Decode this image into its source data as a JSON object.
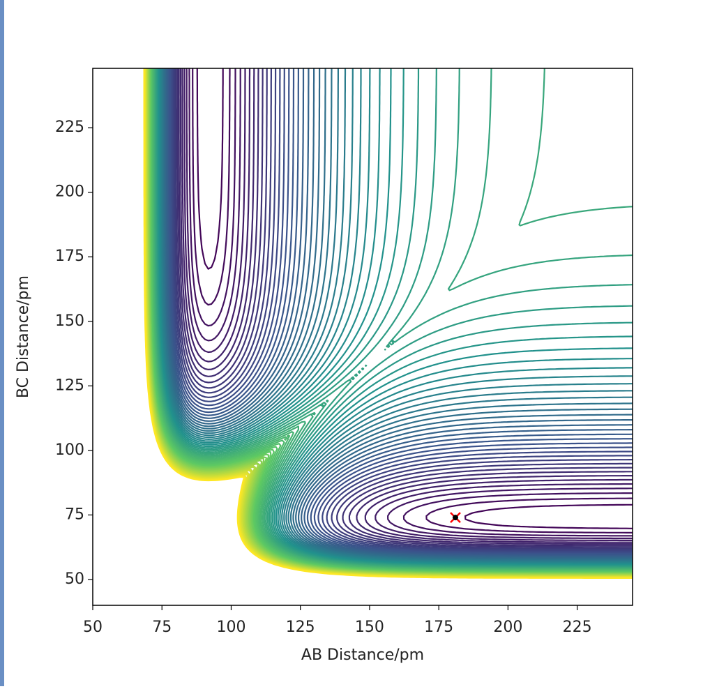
{
  "chart_data": {
    "type": "contour",
    "xlabel": "AB Distance/pm",
    "ylabel": "BC Distance/pm",
    "xlim": [
      50,
      245
    ],
    "ylim": [
      40,
      248
    ],
    "xticks": [
      50,
      75,
      100,
      125,
      150,
      175,
      200,
      225
    ],
    "yticks": [
      50,
      75,
      100,
      125,
      150,
      175,
      200,
      225
    ],
    "colormap": "viridis",
    "series": [
      {
        "type": "scatter",
        "color": "#ff0000",
        "x": [
          181
        ],
        "values": [
          74
        ]
      }
    ]
  }
}
